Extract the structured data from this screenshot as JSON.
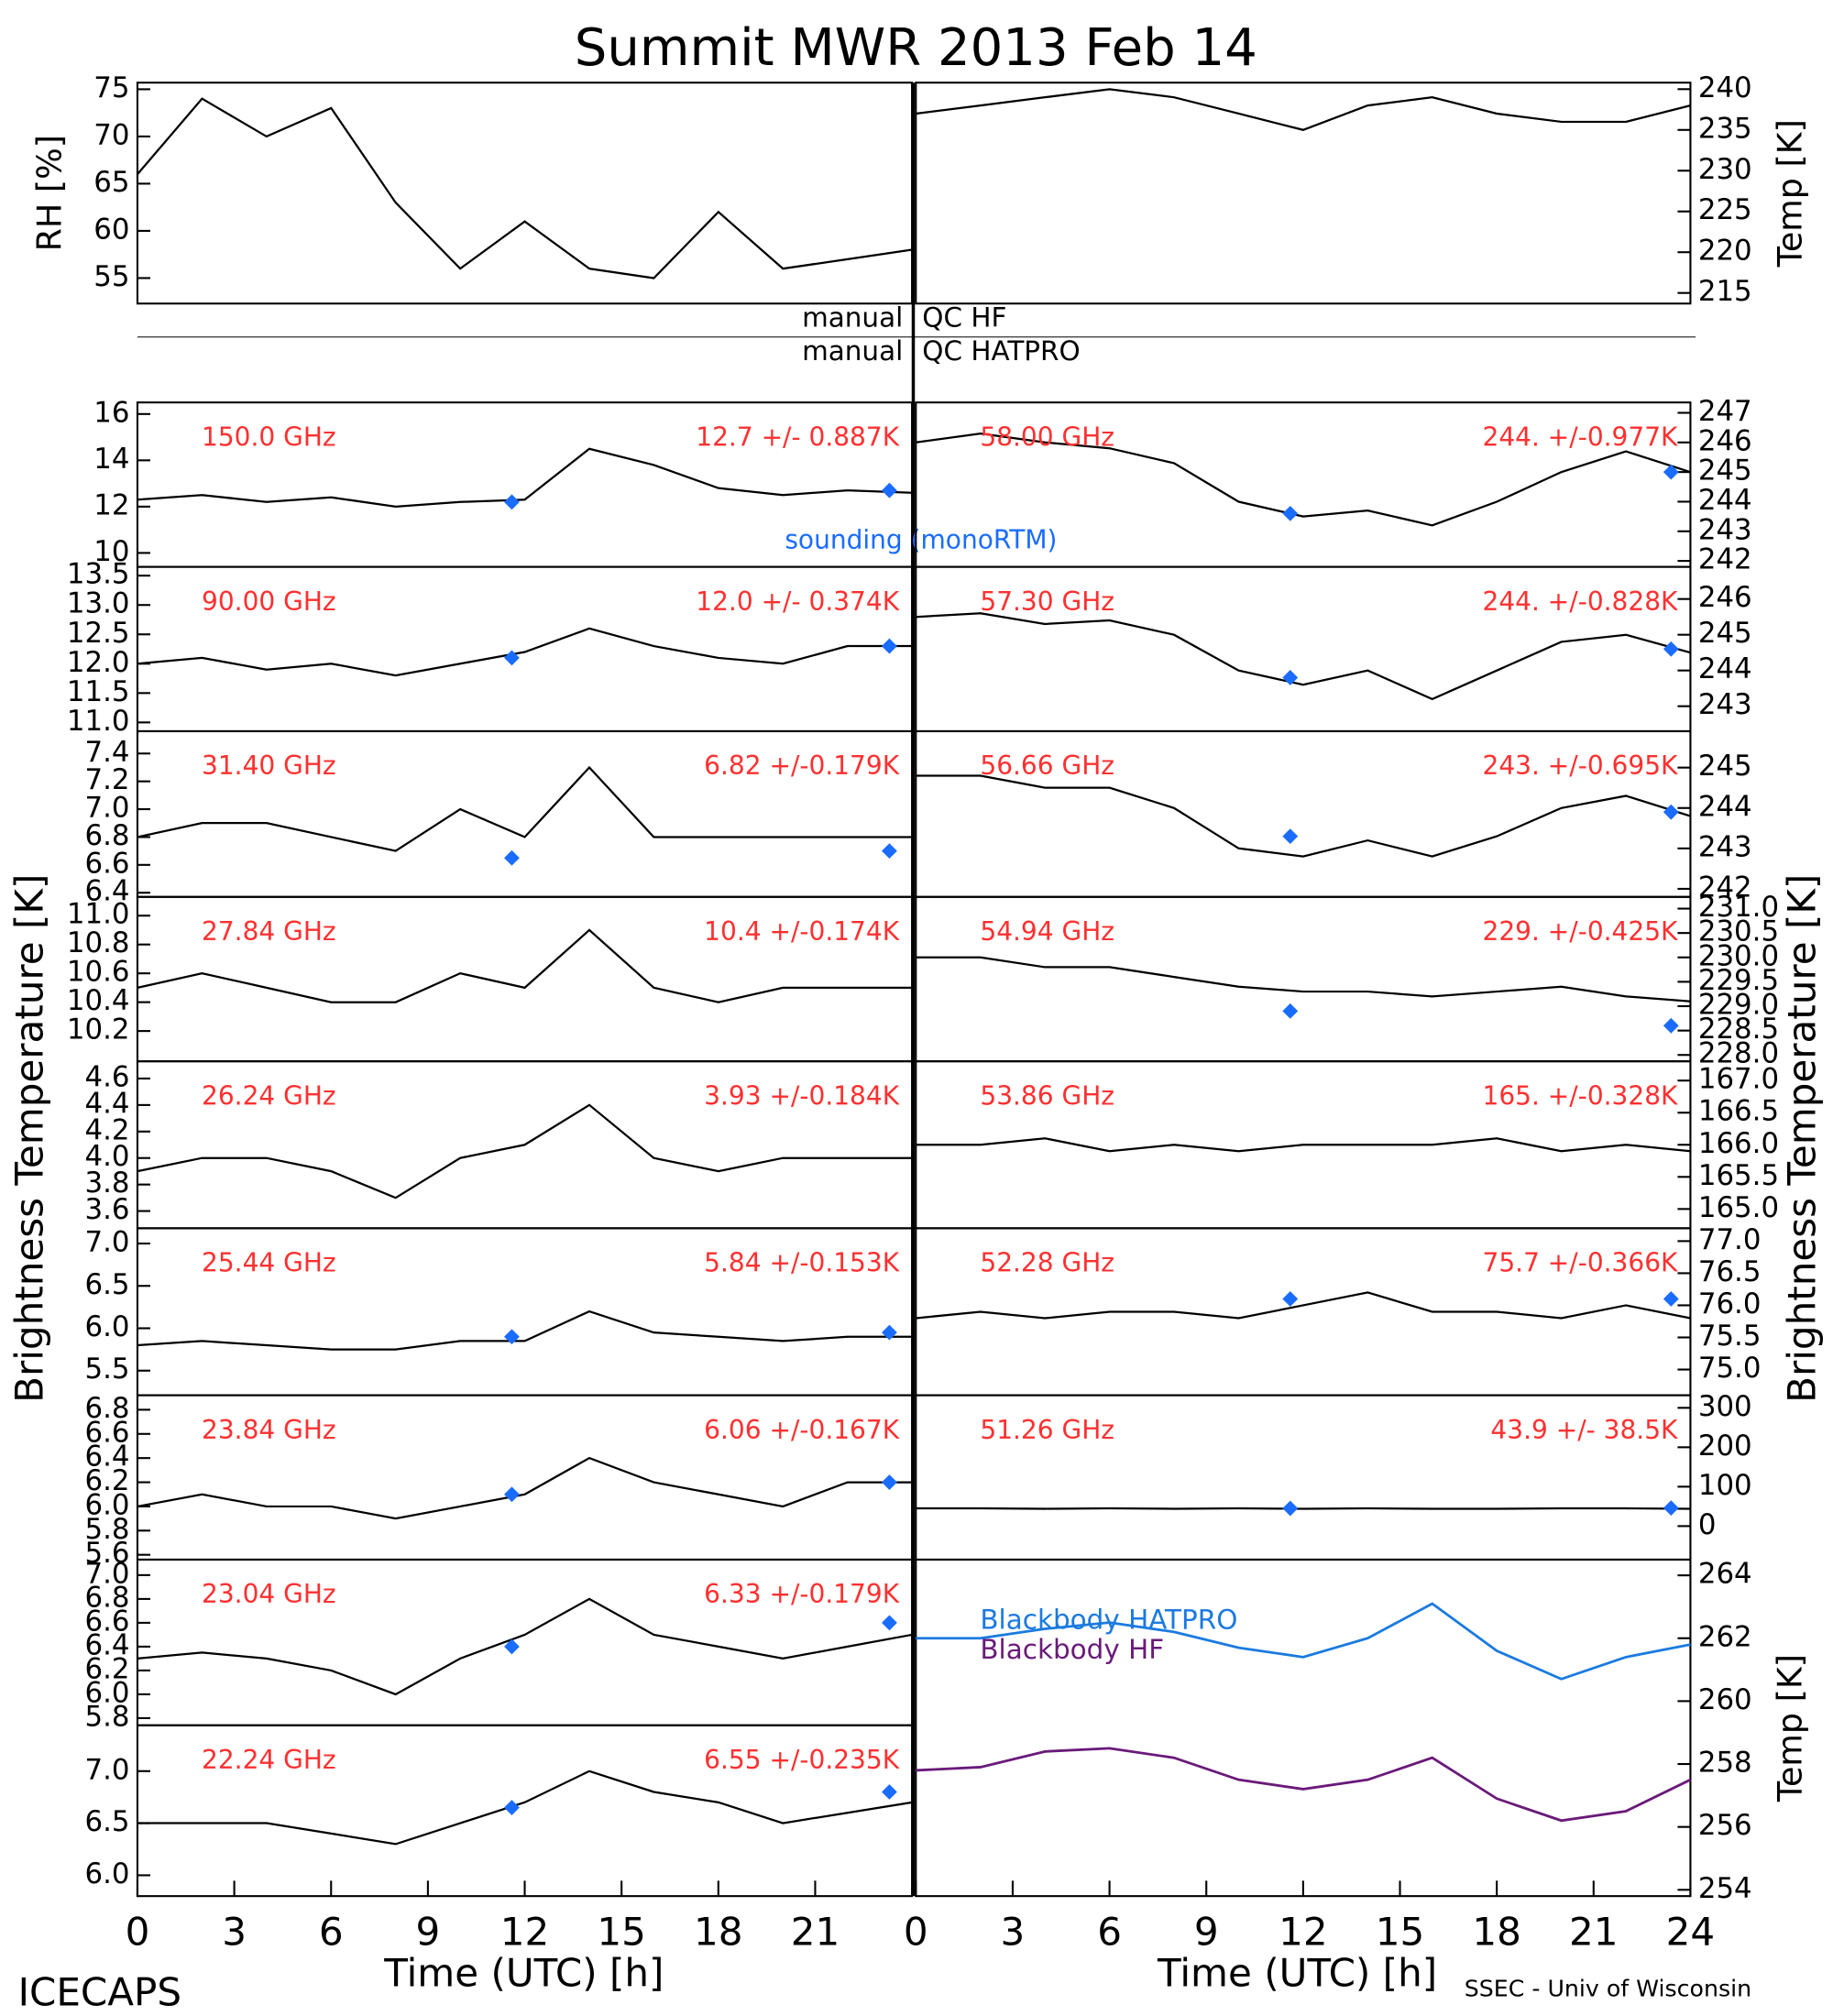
{
  "figure": {
    "title": "Summit MWR 2013 Feb 14",
    "x_label": "Time (UTC) [h]",
    "y_label": "Brightness Temperature [K]",
    "left_credit": "ICECAPS",
    "right_credit": "SSEC - Univ of Wisconsin",
    "qc": [
      {
        "left": "manual",
        "right": "QC HF"
      },
      {
        "left": "manual",
        "right": "QC HATPRO"
      }
    ]
  },
  "chart_data": [
    {
      "type": "line",
      "ylabel": "RH [%]",
      "xlim": [
        0,
        24
      ],
      "ylim": [
        52.3,
        75.7
      ],
      "yticks": [
        55,
        60,
        65,
        70,
        75
      ],
      "x": [
        0,
        2,
        4,
        6,
        8,
        10,
        12,
        14,
        16,
        18,
        20,
        22,
        24
      ],
      "series": [
        {
          "color": "#000000",
          "values": [
            66,
            74,
            70,
            73,
            63,
            56,
            61,
            56,
            55,
            62,
            56,
            57,
            58
          ]
        }
      ]
    },
    {
      "type": "line",
      "ylabel": "Temp [K]",
      "xlim": [
        0,
        24
      ],
      "ylim": [
        213.7,
        240.8
      ],
      "yticks": [
        215,
        220,
        225,
        230,
        235,
        240
      ],
      "x": [
        0,
        2,
        4,
        6,
        8,
        10,
        12,
        14,
        16,
        18,
        20,
        22,
        24
      ],
      "series": [
        {
          "color": "#000000",
          "values": [
            237,
            238,
            239,
            240,
            239,
            237,
            235,
            238,
            239,
            237,
            236,
            236,
            238
          ]
        }
      ]
    },
    {
      "type": "line",
      "freq": "150.0 GHz",
      "stats": "12.7 +/- 0.887K",
      "xlim": [
        0,
        24
      ],
      "ylim": [
        9.4,
        16.5
      ],
      "yticks": [
        10,
        12,
        14,
        16
      ],
      "x": [
        0,
        2,
        4,
        6,
        8,
        10,
        12,
        14,
        16,
        18,
        20,
        22,
        24
      ],
      "series": [
        {
          "color": "#000000",
          "values": [
            12.3,
            12.5,
            12.2,
            12.4,
            12.0,
            12.2,
            12.3,
            14.5,
            13.8,
            12.8,
            12.5,
            12.7,
            12.6
          ]
        }
      ],
      "sounding": {
        "name": "sounding (monoRTM)",
        "color": "#1a6cff",
        "x": [
          11.6,
          23.3
        ],
        "values": [
          12.2,
          12.7
        ]
      }
    },
    {
      "type": "line",
      "freq": "90.00 GHz",
      "stats": "12.0 +/- 0.374K",
      "xlim": [
        0,
        24
      ],
      "ylim": [
        10.85,
        13.65
      ],
      "yticks": [
        {
          "value": 11,
          "label": "11.0"
        },
        11.5,
        {
          "value": 12,
          "label": "12.0"
        },
        12.5,
        {
          "value": 13,
          "label": "13.0"
        },
        13.5
      ],
      "x": [
        0,
        2,
        4,
        6,
        8,
        10,
        12,
        14,
        16,
        18,
        20,
        22,
        24
      ],
      "series": [
        {
          "color": "#000000",
          "values": [
            12.0,
            12.1,
            11.9,
            12.0,
            11.8,
            12.0,
            12.2,
            12.6,
            12.3,
            12.1,
            12.0,
            12.3,
            12.3
          ]
        }
      ],
      "sounding": {
        "color": "#1a6cff",
        "x": [
          11.6,
          23.3
        ],
        "values": [
          12.1,
          12.3
        ]
      }
    },
    {
      "type": "line",
      "freq": "31.40 GHz",
      "stats": "6.82 +/-0.179K",
      "xlim": [
        0,
        24
      ],
      "ylim": [
        6.37,
        7.56
      ],
      "yticks": [
        6.4,
        6.6,
        6.8,
        {
          "value": 7,
          "label": "7.0"
        },
        7.2,
        7.4
      ],
      "x": [
        0,
        2,
        4,
        6,
        8,
        10,
        12,
        14,
        16,
        18,
        20,
        22,
        24
      ],
      "series": [
        {
          "color": "#000000",
          "values": [
            6.8,
            6.9,
            6.9,
            6.8,
            6.7,
            7.0,
            6.8,
            7.3,
            6.8,
            6.8,
            6.8,
            6.8,
            6.8
          ]
        }
      ],
      "sounding": {
        "color": "#1a6cff",
        "x": [
          11.6,
          23.3
        ],
        "values": [
          6.65,
          6.7
        ]
      }
    },
    {
      "type": "line",
      "freq": "27.84 GHz",
      "stats": "10.4 +/-0.174K",
      "xlim": [
        0,
        24
      ],
      "ylim": [
        9.99,
        11.13
      ],
      "yticks": [
        10.2,
        10.4,
        10.6,
        10.8,
        {
          "value": 11,
          "label": "11.0"
        }
      ],
      "x": [
        0,
        2,
        4,
        6,
        8,
        10,
        12,
        14,
        16,
        18,
        20,
        22,
        24
      ],
      "series": [
        {
          "color": "#000000",
          "values": [
            10.5,
            10.6,
            10.5,
            10.4,
            10.4,
            10.6,
            10.5,
            10.9,
            10.5,
            10.4,
            10.5,
            10.5,
            10.5
          ]
        }
      ]
    },
    {
      "type": "line",
      "freq": "26.24 GHz",
      "stats": "3.93 +/-0.184K",
      "xlim": [
        0,
        24
      ],
      "ylim": [
        3.47,
        4.73
      ],
      "yticks": [
        3.6,
        3.8,
        {
          "value": 4,
          "label": "4.0"
        },
        4.2,
        4.4,
        4.6
      ],
      "x": [
        0,
        2,
        4,
        6,
        8,
        10,
        12,
        14,
        16,
        18,
        20,
        22,
        24
      ],
      "series": [
        {
          "color": "#000000",
          "values": [
            3.9,
            4.0,
            4.0,
            3.9,
            3.7,
            4.0,
            4.1,
            4.4,
            4.0,
            3.9,
            4.0,
            4.0,
            4.0
          ]
        }
      ]
    },
    {
      "type": "line",
      "freq": "25.44 GHz",
      "stats": "5.84 +/-0.153K",
      "xlim": [
        0,
        24
      ],
      "ylim": [
        5.21,
        7.18
      ],
      "yticks": [
        5.5,
        {
          "value": 6,
          "label": "6.0"
        },
        6.5,
        {
          "value": 7,
          "label": "7.0"
        }
      ],
      "x": [
        0,
        2,
        4,
        6,
        8,
        10,
        12,
        14,
        16,
        18,
        20,
        22,
        24
      ],
      "series": [
        {
          "color": "#000000",
          "values": [
            5.8,
            5.85,
            5.8,
            5.75,
            5.75,
            5.85,
            5.85,
            6.2,
            5.95,
            5.9,
            5.85,
            5.9,
            5.9
          ]
        }
      ],
      "sounding": {
        "color": "#1a6cff",
        "x": [
          11.6,
          23.3
        ],
        "values": [
          5.9,
          5.95
        ]
      }
    },
    {
      "type": "line",
      "freq": "23.84 GHz",
      "stats": "6.06 +/-0.167K",
      "xlim": [
        0,
        24
      ],
      "ylim": [
        5.56,
        6.92
      ],
      "yticks": [
        5.6,
        5.8,
        {
          "value": 6,
          "label": "6.0"
        },
        6.2,
        6.4,
        6.6,
        6.8
      ],
      "x": [
        0,
        2,
        4,
        6,
        8,
        10,
        12,
        14,
        16,
        18,
        20,
        22,
        24
      ],
      "series": [
        {
          "color": "#000000",
          "values": [
            6.0,
            6.1,
            6.0,
            6.0,
            5.9,
            6.0,
            6.1,
            6.4,
            6.2,
            6.1,
            6.0,
            6.2,
            6.2
          ]
        }
      ],
      "sounding": {
        "color": "#1a6cff",
        "x": [
          11.6,
          23.3
        ],
        "values": [
          6.1,
          6.2
        ]
      }
    },
    {
      "type": "line",
      "freq": "23.04 GHz",
      "stats": "6.33 +/-0.179K",
      "xlim": [
        0,
        24
      ],
      "ylim": [
        5.74,
        7.13
      ],
      "yticks": [
        5.8,
        {
          "value": 6,
          "label": "6.0"
        },
        6.2,
        6.4,
        6.6,
        6.8,
        {
          "value": 7,
          "label": "7.0"
        }
      ],
      "x": [
        0,
        2,
        4,
        6,
        8,
        10,
        12,
        14,
        16,
        18,
        20,
        22,
        24
      ],
      "series": [
        {
          "color": "#000000",
          "values": [
            6.3,
            6.35,
            6.3,
            6.2,
            6.0,
            6.3,
            6.5,
            6.8,
            6.5,
            6.4,
            6.3,
            6.4,
            6.5
          ]
        }
      ],
      "sounding": {
        "color": "#1a6cff",
        "x": [
          11.6,
          23.3
        ],
        "values": [
          6.4,
          6.6
        ]
      }
    },
    {
      "type": "line",
      "freq": "22.24 GHz",
      "stats": "6.55 +/-0.235K",
      "xlim": [
        0,
        24
      ],
      "ylim": [
        5.8,
        7.44
      ],
      "yticks": [
        {
          "value": 6,
          "label": "6.0"
        },
        6.5,
        {
          "value": 7,
          "label": "7.0"
        }
      ],
      "xticks": [
        0,
        3,
        6,
        9,
        12,
        15,
        18,
        21
      ],
      "x": [
        0,
        2,
        4,
        6,
        8,
        10,
        12,
        14,
        16,
        18,
        20,
        22,
        24
      ],
      "series": [
        {
          "color": "#000000",
          "values": [
            6.5,
            6.5,
            6.5,
            6.4,
            6.3,
            6.5,
            6.7,
            7.0,
            6.8,
            6.7,
            6.5,
            6.6,
            6.7
          ]
        }
      ],
      "sounding": {
        "color": "#1a6cff",
        "x": [
          11.6,
          23.3
        ],
        "values": [
          6.65,
          6.8
        ]
      }
    },
    {
      "type": "line",
      "freq": "58.00 GHz",
      "stats": "244. +/-0.977K",
      "xlim": [
        0,
        24
      ],
      "ylim": [
        241.8,
        247.35
      ],
      "yticks": [
        242,
        243,
        244,
        245,
        246,
        247
      ],
      "x": [
        0,
        2,
        4,
        6,
        8,
        10,
        12,
        14,
        16,
        18,
        20,
        22,
        24
      ],
      "series": [
        {
          "color": "#000000",
          "values": [
            246,
            246.3,
            246,
            245.8,
            245.3,
            244,
            243.5,
            243.7,
            243.2,
            244,
            245,
            245.7,
            245
          ]
        }
      ],
      "sounding": {
        "color": "#1a6cff",
        "x": [
          11.6,
          23.4
        ],
        "values": [
          243.6,
          245
        ]
      }
    },
    {
      "type": "line",
      "freq": "57.30 GHz",
      "stats": "244. +/-0.828K",
      "xlim": [
        0,
        24
      ],
      "ylim": [
        242.3,
        246.9
      ],
      "yticks": [
        243,
        244,
        245,
        246
      ],
      "x": [
        0,
        2,
        4,
        6,
        8,
        10,
        12,
        14,
        16,
        18,
        20,
        22,
        24
      ],
      "series": [
        {
          "color": "#000000",
          "values": [
            245.5,
            245.6,
            245.3,
            245.4,
            245,
            244,
            243.6,
            244,
            243.2,
            244,
            244.8,
            245,
            244.5
          ]
        }
      ],
      "sounding": {
        "color": "#1a6cff",
        "x": [
          11.6,
          23.4
        ],
        "values": [
          243.8,
          244.6
        ]
      }
    },
    {
      "type": "line",
      "freq": "56.66 GHz",
      "stats": "243. +/-0.695K",
      "xlim": [
        0,
        24
      ],
      "ylim": [
        241.8,
        245.9
      ],
      "yticks": [
        242,
        243,
        244,
        245
      ],
      "x": [
        0,
        2,
        4,
        6,
        8,
        10,
        12,
        14,
        16,
        18,
        20,
        22,
        24
      ],
      "series": [
        {
          "color": "#000000",
          "values": [
            244.8,
            244.8,
            244.5,
            244.5,
            244,
            243,
            242.8,
            243.2,
            242.8,
            243.3,
            244,
            244.3,
            243.8
          ]
        }
      ],
      "sounding": {
        "color": "#1a6cff",
        "x": [
          11.6,
          23.4
        ],
        "values": [
          243.3,
          243.9
        ]
      }
    },
    {
      "type": "line",
      "freq": "54.94 GHz",
      "stats": "229. +/-0.425K",
      "xlim": [
        0,
        24
      ],
      "ylim": [
        227.87,
        231.24
      ],
      "yticks": [
        {
          "value": 228,
          "label": "228.0"
        },
        228.5,
        {
          "value": 229,
          "label": "229.0"
        },
        229.5,
        {
          "value": 230,
          "label": "230.0"
        },
        230.5,
        {
          "value": 231,
          "label": "231.0"
        }
      ],
      "x": [
        0,
        2,
        4,
        6,
        8,
        10,
        12,
        14,
        16,
        18,
        20,
        22,
        24
      ],
      "series": [
        {
          "color": "#000000",
          "values": [
            230,
            230,
            229.8,
            229.8,
            229.6,
            229.4,
            229.3,
            229.3,
            229.2,
            229.3,
            229.4,
            229.2,
            229.1
          ]
        }
      ],
      "sounding": {
        "color": "#1a6cff",
        "x": [
          11.6,
          23.4
        ],
        "values": [
          228.9,
          228.6
        ]
      }
    },
    {
      "type": "line",
      "freq": "53.86 GHz",
      "stats": "165. +/-0.328K",
      "xlim": [
        0,
        24
      ],
      "ylim": [
        164.7,
        167.3
      ],
      "yticks": [
        {
          "value": 165,
          "label": "165.0"
        },
        165.5,
        {
          "value": 166,
          "label": "166.0"
        },
        166.5,
        {
          "value": 167,
          "label": "167.0"
        }
      ],
      "x": [
        0,
        2,
        4,
        6,
        8,
        10,
        12,
        14,
        16,
        18,
        20,
        22,
        24
      ],
      "series": [
        {
          "color": "#000000",
          "values": [
            166,
            166,
            166.1,
            165.9,
            166,
            165.9,
            166,
            166,
            166,
            166.1,
            165.9,
            166,
            165.9
          ]
        }
      ]
    },
    {
      "type": "line",
      "freq": "52.28 GHz",
      "stats": "75.7 +/-0.366K",
      "xlim": [
        0,
        24
      ],
      "ylim": [
        74.6,
        77.2
      ],
      "yticks": [
        {
          "value": 75,
          "label": "75.0"
        },
        75.5,
        {
          "value": 76,
          "label": "76.0"
        },
        76.5,
        {
          "value": 77,
          "label": "77.0"
        }
      ],
      "x": [
        0,
        2,
        4,
        6,
        8,
        10,
        12,
        14,
        16,
        18,
        20,
        22,
        24
      ],
      "series": [
        {
          "color": "#000000",
          "values": [
            75.8,
            75.9,
            75.8,
            75.9,
            75.9,
            75.8,
            76,
            76.2,
            75.9,
            75.9,
            75.8,
            76,
            75.8
          ]
        }
      ],
      "sounding": {
        "color": "#1a6cff",
        "x": [
          11.6,
          23.4
        ],
        "values": [
          76.1,
          76.1
        ]
      }
    },
    {
      "type": "line",
      "freq": "51.26 GHz",
      "stats": "43.9 +/- 38.5K",
      "xlim": [
        0,
        24
      ],
      "ylim": [
        -85,
        332
      ],
      "yticks": [
        0,
        100,
        200,
        300
      ],
      "x": [
        0,
        2,
        4,
        6,
        8,
        10,
        12,
        14,
        16,
        18,
        20,
        22,
        24
      ],
      "series": [
        {
          "color": "#000000",
          "values": [
            45,
            45,
            44,
            45,
            44,
            45,
            44,
            45,
            44,
            44,
            45,
            45,
            44
          ]
        }
      ],
      "sounding": {
        "color": "#1a6cff",
        "x": [
          11.6,
          23.4
        ],
        "values": [
          45,
          46
        ]
      }
    },
    {
      "type": "line",
      "ylabel": "Temp [K]",
      "xlim": [
        0,
        24
      ],
      "ylim": [
        253.8,
        264.5
      ],
      "yticks": [
        254,
        256,
        258,
        260,
        262,
        264
      ],
      "xticks": [
        0,
        3,
        6,
        9,
        12,
        15,
        18,
        21,
        24
      ],
      "x": [
        0,
        2,
        4,
        6,
        8,
        10,
        12,
        14,
        16,
        18,
        20,
        22,
        24
      ],
      "series": [
        {
          "name": "Blackbody HATPRO",
          "color": "#1a7ae0",
          "values": [
            262,
            262,
            262.3,
            262.5,
            262.2,
            261.7,
            261.4,
            262,
            263.1,
            261.6,
            260.7,
            261.4,
            261.8
          ]
        },
        {
          "name": "Blackbody HF",
          "color": "#6a1a7a",
          "values": [
            257.8,
            257.9,
            258.4,
            258.5,
            258.2,
            257.5,
            257.2,
            257.5,
            258.2,
            256.9,
            256.2,
            256.5,
            257.5
          ]
        }
      ]
    }
  ]
}
